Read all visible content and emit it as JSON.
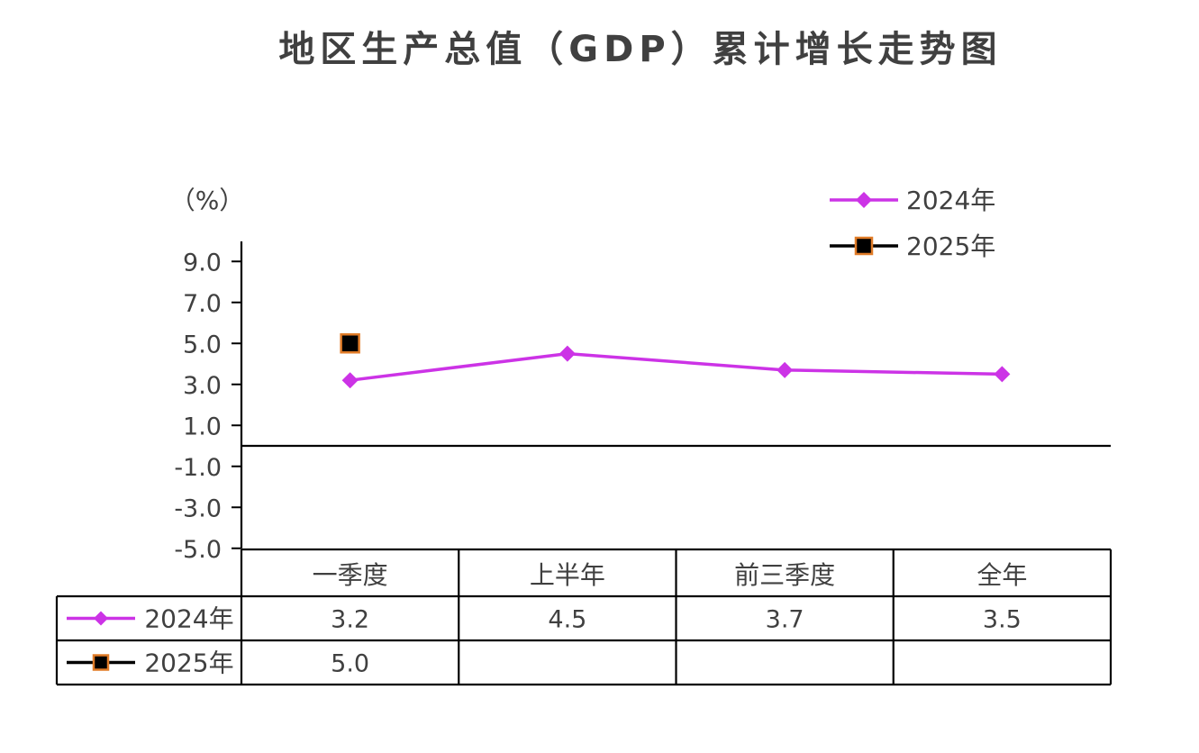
{
  "chart_data": {
    "type": "line",
    "title": "地区生产总值（GDP）累计增长走势图",
    "ylabel": "（%）",
    "xlabel": "",
    "categories": [
      "一季度",
      "上半年",
      "前三季度",
      "全年"
    ],
    "ylim": [
      -5.0,
      10.0
    ],
    "yticks": [
      9.0,
      7.0,
      5.0,
      3.0,
      1.0,
      -1.0,
      -3.0,
      -5.0
    ],
    "ytick_labels": [
      "9.0",
      "7.0",
      "5.0",
      "3.0",
      "1.0",
      "-1.0",
      "-3.0",
      "-5.0"
    ],
    "grid": false,
    "legend_position": "top-right",
    "series": [
      {
        "name": "2024年",
        "values": [
          3.2,
          4.5,
          3.7,
          3.5
        ],
        "labels": [
          "3.2",
          "4.5",
          "3.7",
          "3.5"
        ],
        "color": "#cc33e6",
        "marker": "diamond"
      },
      {
        "name": "2025年",
        "values": [
          5.0,
          null,
          null,
          null
        ],
        "labels": [
          "5.0",
          "",
          "",
          ""
        ],
        "color": "#000000",
        "marker_edge": "#e07b27",
        "marker": "square"
      }
    ]
  }
}
